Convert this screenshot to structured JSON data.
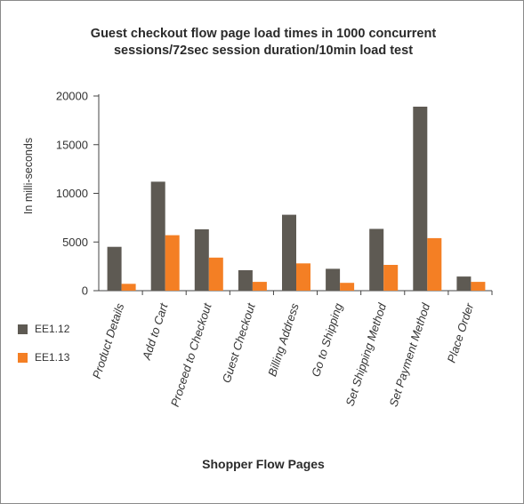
{
  "chart_data": {
    "type": "bar",
    "title_lines": [
      "Guest checkout flow page load times in 1000 concurrent",
      "sessions/72sec session duration/10min load test"
    ],
    "xlabel": "Shopper Flow Pages",
    "ylabel": "In milli-seconds",
    "ylim": [
      0,
      20000
    ],
    "yticks": [
      0,
      5000,
      10000,
      15000,
      20000
    ],
    "grid": false,
    "legend_position": "left",
    "categories": [
      "Product Details",
      "Add to Cart",
      "Proceed to Checkout",
      "Guest Checkout",
      "Billing Address",
      "Go to Shipping",
      "Set Shipping Method",
      "Set Payment Method",
      "Place Order"
    ],
    "series": [
      {
        "name": "EE1.12",
        "color": "#5e5a53",
        "values": [
          4500,
          11200,
          6300,
          2100,
          7800,
          2250,
          6350,
          18900,
          1450
        ]
      },
      {
        "name": "EE1.13",
        "color": "#f47f24",
        "values": [
          700,
          5700,
          3400,
          900,
          2800,
          800,
          2650,
          5400,
          900
        ]
      }
    ]
  }
}
